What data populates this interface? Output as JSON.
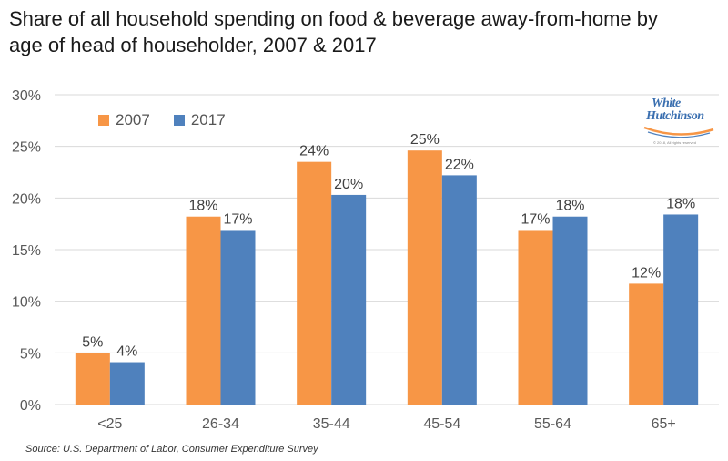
{
  "title_line1": "Share of all household spending on food & beverage away-from-home by",
  "title_line2": "age of head of householder, 2007 & 2017",
  "source": "Source: U.S. Department of Labor, Consumer Expenditure Survey",
  "logo": {
    "line1": "White",
    "line2": "Hutchinson",
    "line3": "© 2018, All rights reserved"
  },
  "colors": {
    "s2007": "#f79646",
    "s2017": "#4f81bd",
    "grid": "#d9d9d9",
    "axis_text": "#595959",
    "label_text": "#404040"
  },
  "chart_data": {
    "type": "bar",
    "categories": [
      "<25",
      "26-34",
      "35-44",
      "45-54",
      "55-64",
      "65+"
    ],
    "series": [
      {
        "name": "2007",
        "values": [
          5,
          18.2,
          23.5,
          24.6,
          16.9,
          11.7
        ],
        "labels": [
          "5%",
          "18%",
          "24%",
          "25%",
          "17%",
          "12%"
        ]
      },
      {
        "name": "2017",
        "values": [
          4.1,
          16.9,
          20.3,
          22.2,
          18.2,
          18.4
        ],
        "labels": [
          "4%",
          "17%",
          "20%",
          "22%",
          "18%",
          "18%"
        ]
      }
    ],
    "yticks": [
      "0%",
      "5%",
      "10%",
      "15%",
      "20%",
      "25%",
      "30%"
    ],
    "ylim": [
      0,
      30
    ],
    "grid": true,
    "legend_position": "top-left"
  }
}
